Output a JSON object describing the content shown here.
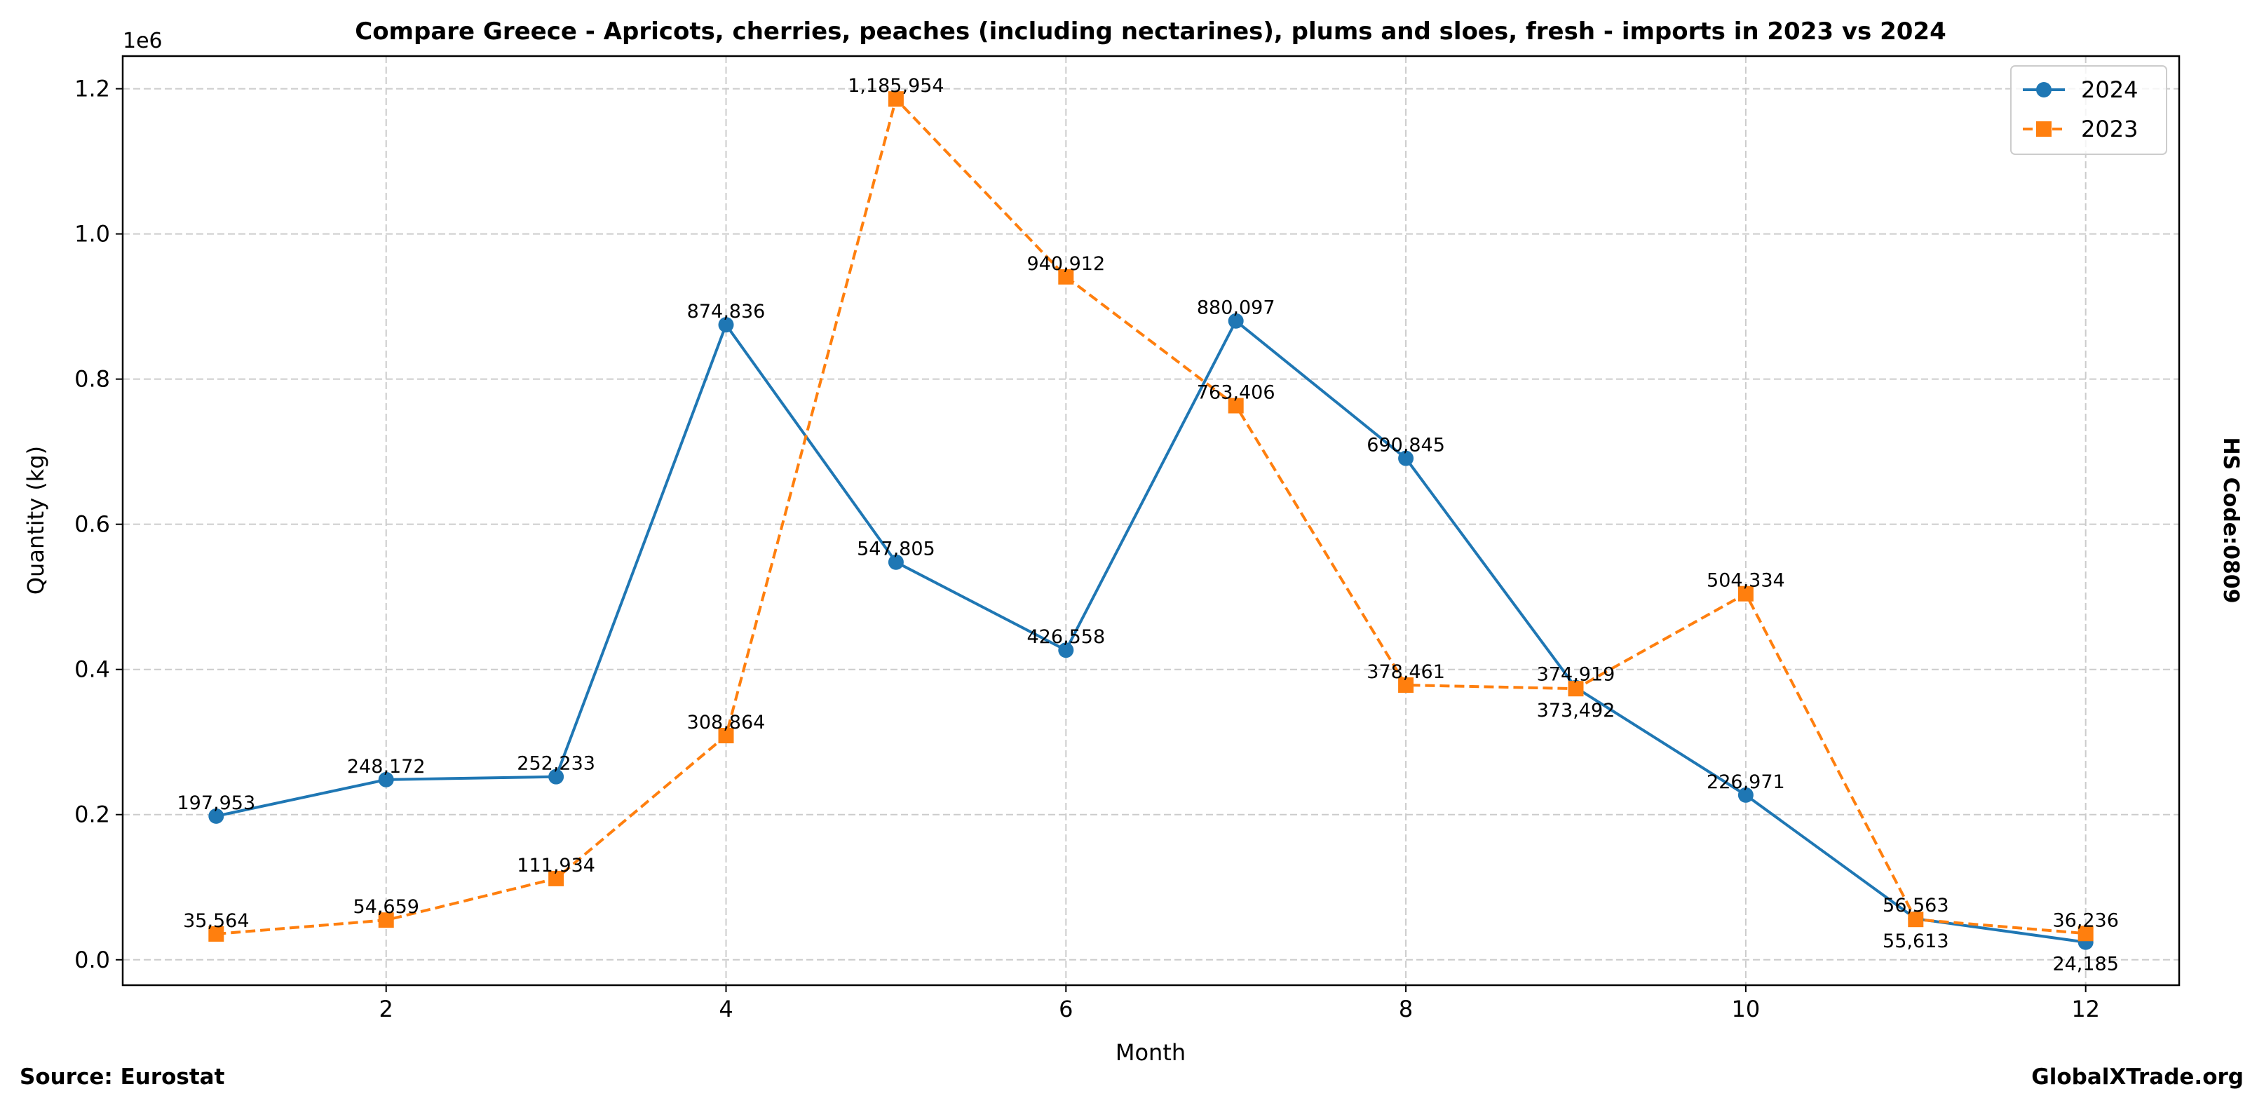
{
  "chart_data": {
    "type": "line",
    "title": "Compare Greece - Apricots, cherries, peaches (including nectarines), plums and sloes, fresh - imports in 2023 vs 2024",
    "xlabel": "Month",
    "ylabel": "Quantity (kg)",
    "y_offset_label": "1e6",
    "right_label": "HS Code:0809",
    "source": "Source: Eurostat",
    "watermark": "GlobalXTrade.org",
    "x": [
      1,
      2,
      3,
      4,
      5,
      6,
      7,
      8,
      9,
      10,
      11,
      12
    ],
    "xlim": [
      0.45,
      12.55
    ],
    "ylim": [
      -35000,
      1245000
    ],
    "xticks": [
      2,
      4,
      6,
      8,
      10,
      12
    ],
    "yticks": [
      0,
      200000,
      400000,
      600000,
      800000,
      1000000,
      1200000
    ],
    "ytick_labels": [
      "0.0",
      "0.2",
      "0.4",
      "0.6",
      "0.8",
      "1.0",
      "1.2"
    ],
    "grid": true,
    "legend_position": "top-right",
    "series": [
      {
        "name": "2024",
        "color": "#1f77b4",
        "marker": "circle",
        "dash": "solid",
        "values": [
          197953,
          248172,
          252233,
          874836,
          547805,
          426558,
          880097,
          690845,
          374919,
          226971,
          56563,
          24185
        ],
        "labels": [
          "197,953",
          "248,172",
          "252,233",
          "874,836",
          "547,805",
          "426,558",
          "880,097",
          "690,845",
          "374,919",
          "226,971",
          "56,563",
          "24,185"
        ]
      },
      {
        "name": "2023",
        "color": "#ff7f0e",
        "marker": "square",
        "dash": "dashed",
        "values": [
          35564,
          54659,
          111934,
          308864,
          1185954,
          940912,
          763406,
          378461,
          373492,
          504334,
          55613,
          36236
        ],
        "labels": [
          "35,564",
          "54,659",
          "111,934",
          "308,864",
          "1,185,954",
          "940,912",
          "763,406",
          "378,461",
          "373,492",
          "504,334",
          "55,613",
          "36,236"
        ]
      }
    ]
  }
}
